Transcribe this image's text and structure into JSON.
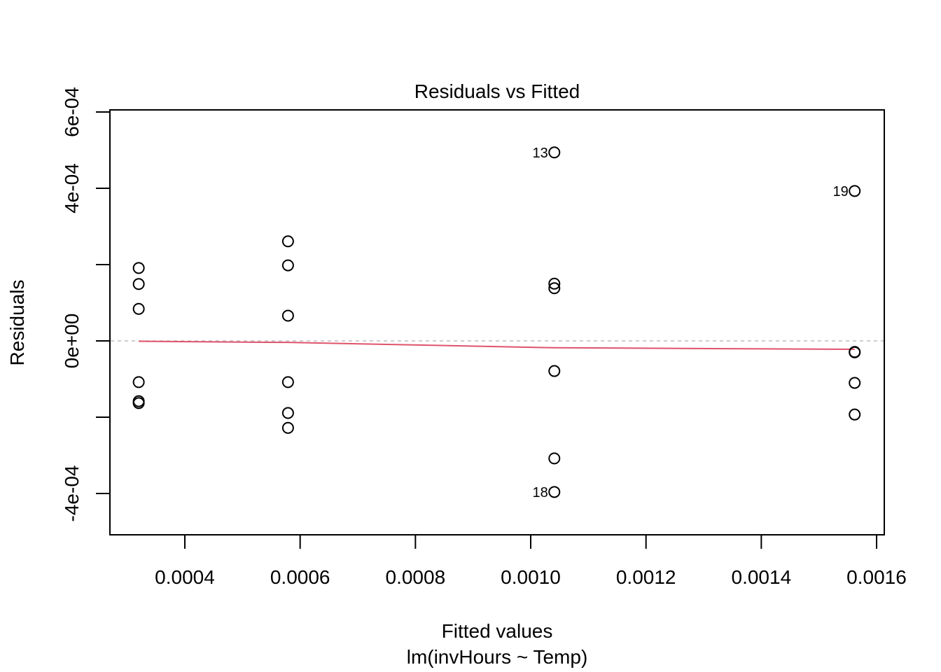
{
  "chart_data": {
    "type": "scatter",
    "title": "Residuals vs Fitted",
    "xlabel": "Fitted values",
    "subtitle": "lm(invHours ~ Temp)",
    "ylabel": "Residuals",
    "xlim": [
      0.00027,
      0.001615
    ],
    "ylim": [
      -0.00051,
      0.000605
    ],
    "x_ticks": [
      0.0004,
      0.0006,
      0.0008,
      0.001,
      0.0012,
      0.0014,
      0.0016
    ],
    "x_tick_labels": [
      "0.0004",
      "0.0006",
      "0.0008",
      "0.0010",
      "0.0012",
      "0.0014",
      "0.0016"
    ],
    "y_ticks": [
      -0.0004,
      -0.0002,
      0.0,
      0.0002,
      0.0004,
      0.0006
    ],
    "y_tick_labels": [
      "-4e-04",
      "",
      "0e+00",
      "",
      "4e-04",
      "6e-04"
    ],
    "grid": false,
    "reference_line": {
      "y": 0,
      "style": "dashed",
      "color": "#BEBEBE"
    },
    "series": [
      {
        "name": "residuals",
        "marker": "open-circle",
        "color": "#000000",
        "points": [
          {
            "x": 0.00032,
            "y": 0.000191
          },
          {
            "x": 0.00032,
            "y": 0.000149
          },
          {
            "x": 0.00032,
            "y": 8.4e-05
          },
          {
            "x": 0.00032,
            "y": -0.000108
          },
          {
            "x": 0.00032,
            "y": -0.000158
          },
          {
            "x": 0.00032,
            "y": -0.000163
          },
          {
            "x": 0.000579,
            "y": 0.000261
          },
          {
            "x": 0.000579,
            "y": 0.000198
          },
          {
            "x": 0.000579,
            "y": 6.6e-05
          },
          {
            "x": 0.000579,
            "y": -0.000108
          },
          {
            "x": 0.000579,
            "y": -0.000189
          },
          {
            "x": 0.000579,
            "y": -0.000228
          },
          {
            "x": 0.001041,
            "y": 0.000494,
            "label": "13"
          },
          {
            "x": 0.001041,
            "y": 0.00015
          },
          {
            "x": 0.001041,
            "y": 0.000138
          },
          {
            "x": 0.001041,
            "y": -7.9e-05
          },
          {
            "x": 0.001041,
            "y": -0.000308
          },
          {
            "x": 0.001041,
            "y": -0.000396,
            "label": "18"
          },
          {
            "x": 0.001562,
            "y": 0.000393,
            "label": "19"
          },
          {
            "x": 0.001562,
            "y": -2.9e-05
          },
          {
            "x": 0.001562,
            "y": -3e-05
          },
          {
            "x": 0.001562,
            "y": -0.00011
          },
          {
            "x": 0.001562,
            "y": -0.000193
          }
        ]
      },
      {
        "name": "smoother",
        "type": "line",
        "color": "#DF536B",
        "points": [
          {
            "x": 0.00032,
            "y": -1e-06
          },
          {
            "x": 0.000579,
            "y": -4e-06
          },
          {
            "x": 0.001041,
            "y": -1.8e-05
          },
          {
            "x": 0.001562,
            "y": -2.2e-05
          }
        ]
      }
    ]
  }
}
